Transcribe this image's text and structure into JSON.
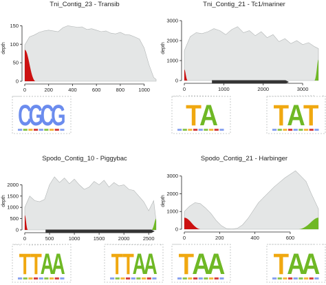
{
  "chart_data": [
    {
      "type": "area",
      "title": "Tni_Contig_23 - Transib",
      "ylabel": "depth",
      "xlim": [
        0,
        1100
      ],
      "ylim": [
        0,
        160
      ],
      "xticks": [
        0,
        200,
        400,
        600,
        800,
        1000
      ],
      "yticks": [
        0,
        50,
        100,
        150
      ],
      "series": [
        {
          "x": [
            0,
            40,
            80,
            120,
            160,
            200,
            240,
            280,
            320,
            360,
            400,
            440,
            480,
            520,
            560,
            600,
            640,
            680,
            720,
            760,
            800,
            840,
            880,
            920,
            960,
            1000,
            1040,
            1080,
            1100
          ],
          "values": [
            98,
            120,
            125,
            132,
            136,
            138,
            136,
            134,
            145,
            150,
            148,
            146,
            147,
            140,
            142,
            138,
            134,
            136,
            130,
            128,
            132,
            126,
            125,
            120,
            114,
            90,
            45,
            10,
            5
          ]
        }
      ],
      "highlights": [
        {
          "color": "#cc1111",
          "x": [
            0,
            90
          ],
          "peak": 85
        }
      ],
      "bars": [],
      "logos": [
        {
          "side": "left",
          "letters": [
            "C",
            "G",
            "C",
            "G"
          ],
          "colors": [
            "#6b8cee",
            "#6b8cee",
            "#6b8cee",
            "#6b8cee"
          ]
        }
      ]
    },
    {
      "type": "area",
      "title": "Tni_Contig_21 - Tc1/mariner",
      "ylabel": "depth",
      "xlim": [
        0,
        3400
      ],
      "ylim": [
        0,
        3000
      ],
      "xticks": [
        0,
        1000,
        2000,
        3000
      ],
      "yticks": [
        0,
        1000,
        2000,
        3000
      ],
      "series": [
        {
          "x": [
            0,
            150,
            300,
            450,
            600,
            750,
            900,
            1050,
            1200,
            1350,
            1500,
            1650,
            1800,
            1950,
            2100,
            2250,
            2400,
            2550,
            2700,
            2850,
            3000,
            3150,
            3300,
            3400
          ],
          "values": [
            1500,
            2200,
            2400,
            2350,
            2450,
            2600,
            2500,
            2300,
            2550,
            2700,
            2400,
            2500,
            2250,
            2450,
            2150,
            2300,
            1950,
            2100,
            1850,
            2000,
            1800,
            1900,
            1700,
            1600
          ]
        }
      ],
      "highlights": [
        {
          "color": "#cc1111",
          "x": [
            0,
            80
          ],
          "peak": 550
        },
        {
          "color": "#6fb825",
          "x": [
            3300,
            3400
          ],
          "peak": 1050
        }
      ],
      "bars": [
        {
          "x": [
            700,
            2650
          ]
        }
      ],
      "logos": [
        {
          "side": "left",
          "letters": [
            "T",
            "A"
          ],
          "colors": [
            "#f0a810",
            "#6fb825"
          ]
        },
        {
          "side": "right",
          "letters": [
            "T",
            "A",
            "T"
          ],
          "colors": [
            "#f0a810",
            "#6fb825",
            "#f0a810"
          ]
        }
      ]
    },
    {
      "type": "area",
      "title": "Spodo_Contig_10 - Piggybac",
      "ylabel": "depth",
      "xlim": [
        0,
        2650
      ],
      "ylim": [
        0,
        2500
      ],
      "xticks": [
        0,
        500,
        1000,
        1500,
        2000,
        2500
      ],
      "yticks": [
        0,
        500,
        1000,
        1500,
        2000
      ],
      "series": [
        {
          "x": [
            0,
            100,
            200,
            300,
            400,
            500,
            600,
            700,
            800,
            900,
            1000,
            1100,
            1200,
            1300,
            1400,
            1500,
            1600,
            1700,
            1800,
            1900,
            2000,
            2100,
            2200,
            2300,
            2400,
            2500,
            2600,
            2650
          ],
          "values": [
            1000,
            1500,
            1300,
            1250,
            1350,
            2000,
            2350,
            2100,
            2300,
            2050,
            2250,
            2000,
            1800,
            1900,
            2150,
            2000,
            2200,
            1900,
            2100,
            1950,
            2000,
            1800,
            1750,
            1500,
            1250,
            850,
            1300,
            400
          ]
        }
      ],
      "highlights": [
        {
          "color": "#cc1111",
          "x": [
            0,
            60
          ],
          "peak": 650
        },
        {
          "color": "#6fb825",
          "x": [
            2560,
            2650
          ],
          "peak": 500
        }
      ],
      "bars": [
        {
          "x": [
            420,
            2620
          ]
        }
      ],
      "logos": [
        {
          "side": "left",
          "letters": [
            "T",
            "T",
            "A",
            "A"
          ],
          "colors": [
            "#f0a810",
            "#f0a810",
            "#6fb825",
            "#6fb825"
          ]
        },
        {
          "side": "right",
          "letters": [
            "T",
            "T",
            "A",
            "A"
          ],
          "colors": [
            "#f0a810",
            "#f0a810",
            "#6fb825",
            "#6fb825"
          ]
        }
      ]
    },
    {
      "type": "area",
      "title": "Spodo_Contig_21 - Harbinger",
      "ylabel": "depth",
      "xlim": [
        0,
        760
      ],
      "ylim": [
        0,
        3300
      ],
      "xticks": [
        0,
        200,
        400,
        600
      ],
      "yticks": [
        0,
        1000,
        2000,
        3000
      ],
      "series": [
        {
          "x": [
            0,
            30,
            60,
            90,
            120,
            150,
            180,
            210,
            240,
            270,
            300,
            330,
            360,
            390,
            420,
            450,
            480,
            510,
            540,
            570,
            600,
            630,
            660,
            690,
            720,
            760
          ],
          "values": [
            1000,
            1300,
            1500,
            1450,
            1200,
            900,
            500,
            200,
            30,
            20,
            50,
            250,
            600,
            1050,
            1500,
            1800,
            2100,
            2400,
            2650,
            2900,
            3100,
            3300,
            3000,
            2700,
            2000,
            1150
          ]
        }
      ],
      "highlights": [
        {
          "color": "#cc1111",
          "x": [
            0,
            90
          ],
          "peak": 650
        },
        {
          "color": "#6fb825",
          "x": [
            650,
            760
          ],
          "peak": 650
        }
      ],
      "bars": [],
      "logos": [
        {
          "side": "left",
          "letters": [
            "T",
            "A",
            "A"
          ],
          "colors": [
            "#f0a810",
            "#6fb825",
            "#6fb825"
          ]
        },
        {
          "side": "right",
          "letters": [
            "T",
            "A",
            "A"
          ],
          "colors": [
            "#f0a810",
            "#6fb825",
            "#6fb825"
          ]
        }
      ]
    }
  ]
}
